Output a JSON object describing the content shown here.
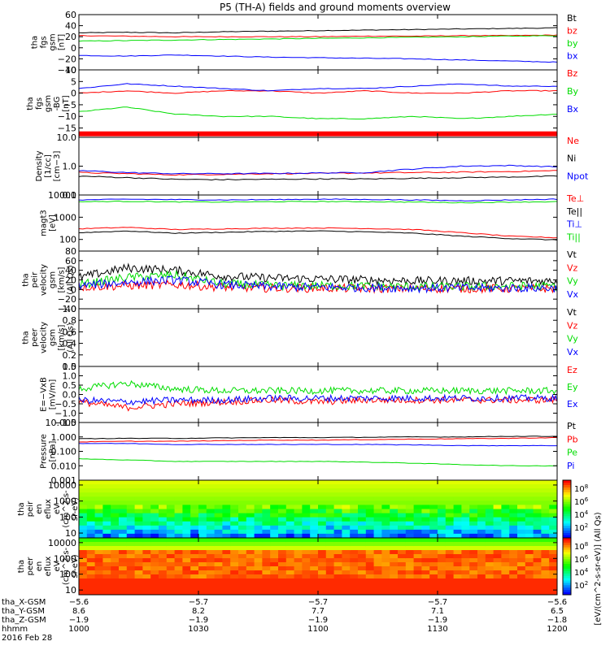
{
  "title": "P5 (TH-A) fields and ground moments overview",
  "colors": {
    "black": "#000000",
    "red": "#ff0000",
    "green": "#00dd00",
    "blue": "#0000ff",
    "axis": "#000000"
  },
  "chart_data": [
    {
      "id": "fgs-gsm-1",
      "type": "line",
      "ylabel": [
        "tha",
        "fgs",
        "gsm",
        "[nT]"
      ],
      "yscale": "linear",
      "ylim": [
        -40,
        60
      ],
      "yticks": [
        {
          "v": 60,
          "label": "60"
        },
        {
          "v": 40,
          "label": "40"
        },
        {
          "v": 20,
          "label": "20"
        },
        {
          "v": 0,
          "label": "0"
        },
        {
          "v": -20,
          "label": "−20"
        },
        {
          "v": -40,
          "label": "−40"
        }
      ],
      "series": [
        {
          "name": "Bt",
          "color": "black",
          "values": [
            27,
            28,
            27,
            29,
            30,
            31,
            32,
            33,
            34,
            35,
            36
          ]
        },
        {
          "name": "bz",
          "color": "red",
          "values": [
            22,
            21,
            20,
            20,
            20,
            20,
            21,
            21,
            22,
            22,
            23
          ]
        },
        {
          "name": "by",
          "color": "green",
          "values": [
            12,
            13,
            14,
            15,
            16,
            17,
            18,
            19,
            20,
            21,
            22
          ]
        },
        {
          "name": "bx",
          "color": "blue",
          "values": [
            -14,
            -15,
            -13,
            -15,
            -17,
            -18,
            -19,
            -20,
            -22,
            -24,
            -26
          ]
        }
      ]
    },
    {
      "id": "fgs-gsm-2",
      "type": "line",
      "ylabel": [
        "tha",
        "fgs",
        "gsm",
        "-BG",
        "[nT]"
      ],
      "yscale": "linear",
      "ylim": [
        -19,
        10
      ],
      "yticks": [
        {
          "v": 10,
          "label": "10"
        },
        {
          "v": 5,
          "label": "5"
        },
        {
          "v": 0,
          "label": "0"
        },
        {
          "v": -5,
          "label": "−5"
        },
        {
          "v": -10,
          "label": "−10"
        },
        {
          "v": -15,
          "label": "−15"
        }
      ],
      "series": [
        {
          "name": "Bz",
          "color": "red",
          "values": [
            0,
            1,
            0,
            1,
            1,
            0,
            1,
            0,
            0,
            1,
            1
          ]
        },
        {
          "name": "By",
          "color": "green",
          "values": [
            -8,
            -6,
            -9,
            -10,
            -10,
            -11,
            -11,
            -10,
            -11,
            -10,
            -9
          ]
        },
        {
          "name": "Bx",
          "color": "blue",
          "values": [
            2,
            4,
            3,
            2,
            1,
            2,
            2,
            3,
            4,
            3,
            3
          ]
        }
      ],
      "band": {
        "y": -17.5,
        "color": "red"
      }
    },
    {
      "id": "density",
      "type": "line",
      "ylabel": [
        "Density",
        "[1/cc]",
        "[cm−3]"
      ],
      "yscale": "log",
      "ylim": [
        0.1,
        10
      ],
      "yticks": [
        {
          "v": 10,
          "label": "10.0"
        },
        {
          "v": 1,
          "label": "1.0"
        },
        {
          "v": 0.1,
          "label": "0.1"
        }
      ],
      "series": [
        {
          "name": "Ne",
          "color": "red",
          "values": [
            0.6,
            0.55,
            0.5,
            0.52,
            0.55,
            0.56,
            0.58,
            0.6,
            0.62,
            0.65,
            0.7
          ]
        },
        {
          "name": "Ni",
          "color": "black",
          "values": [
            0.45,
            0.4,
            0.35,
            0.34,
            0.35,
            0.36,
            0.36,
            0.38,
            0.4,
            0.42,
            0.45
          ]
        },
        {
          "name": "Npot",
          "color": "blue",
          "values": [
            0.7,
            0.6,
            0.55,
            0.55,
            0.56,
            0.58,
            0.6,
            0.8,
            1.0,
            1.05,
            0.95
          ]
        }
      ]
    },
    {
      "id": "temperature",
      "type": "line",
      "ylabel": [
        "magt3",
        "[eV]"
      ],
      "yscale": "log",
      "ylim": [
        30,
        10000
      ],
      "yticks": [
        {
          "v": 10000,
          "label": "10000"
        },
        {
          "v": 1000,
          "label": "1000"
        },
        {
          "v": 100,
          "label": "100"
        }
      ],
      "series": [
        {
          "name": "Te⊥",
          "color": "red",
          "values": [
            300,
            350,
            280,
            300,
            320,
            330,
            310,
            280,
            200,
            140,
            120
          ]
        },
        {
          "name": "Te||",
          "color": "black",
          "values": [
            200,
            240,
            190,
            210,
            230,
            240,
            220,
            190,
            140,
            110,
            95
          ]
        },
        {
          "name": "Ti⊥",
          "color": "blue",
          "values": [
            6000,
            6500,
            6200,
            6000,
            6200,
            6500,
            6300,
            6000,
            5500,
            6000,
            6500
          ]
        },
        {
          "name": "Ti||",
          "color": "green",
          "values": [
            5000,
            5200,
            4900,
            4800,
            5000,
            5100,
            5000,
            4800,
            4500,
            4800,
            5000
          ]
        }
      ]
    },
    {
      "id": "peir-velocity",
      "type": "line",
      "ylabel": [
        "tha",
        "peir",
        "velocity",
        "gsm",
        "[km/s]",
        "(All Qs)"
      ],
      "yscale": "linear",
      "ylim": [
        -40,
        80
      ],
      "yticks": [
        {
          "v": 80,
          "label": "80"
        },
        {
          "v": 60,
          "label": "60"
        },
        {
          "v": 40,
          "label": "40"
        },
        {
          "v": 20,
          "label": "20"
        },
        {
          "v": 0,
          "label": "0"
        },
        {
          "v": -20,
          "label": "−20"
        },
        {
          "v": -40,
          "label": "−40"
        }
      ],
      "series": [
        {
          "name": "Vt",
          "color": "black",
          "values": [
            25,
            45,
            40,
            28,
            24,
            22,
            20,
            18,
            18,
            18,
            18
          ]
        },
        {
          "name": "Vz",
          "color": "red",
          "values": [
            5,
            8,
            10,
            5,
            3,
            3,
            2,
            2,
            2,
            2,
            2
          ]
        },
        {
          "name": "Vy",
          "color": "green",
          "values": [
            10,
            25,
            30,
            12,
            8,
            8,
            7,
            6,
            6,
            7,
            7
          ]
        },
        {
          "name": "Vx",
          "color": "blue",
          "values": [
            8,
            15,
            20,
            10,
            6,
            5,
            4,
            3,
            3,
            3,
            3
          ]
        }
      ]
    },
    {
      "id": "peer-velocity",
      "type": "line",
      "ylabel": [
        "tha",
        "peer",
        "velocity",
        "gsm",
        "[km/s]",
        "(All Qs)"
      ],
      "yscale": "linear",
      "ylim": [
        0,
        1
      ],
      "yticks": [
        {
          "v": 1.0,
          "label": "1.0"
        },
        {
          "v": 0.8,
          "label": "0.8"
        },
        {
          "v": 0.6,
          "label": "0.6"
        },
        {
          "v": 0.4,
          "label": "0.4"
        },
        {
          "v": 0.2,
          "label": "0.2"
        },
        {
          "v": 0.0,
          "label": "0.0"
        }
      ],
      "series": [
        {
          "name": "Vt",
          "color": "black",
          "values": []
        },
        {
          "name": "Vz",
          "color": "red",
          "values": []
        },
        {
          "name": "Vy",
          "color": "green",
          "values": []
        },
        {
          "name": "Vx",
          "color": "blue",
          "values": []
        }
      ]
    },
    {
      "id": "efield",
      "type": "line",
      "ylabel": [
        "E=−VxB",
        "[mV/m]"
      ],
      "yscale": "linear",
      "ylim": [
        -1.5,
        1.5
      ],
      "yticks": [
        {
          "v": 1.5,
          "label": "1.5"
        },
        {
          "v": 1.0,
          "label": "1.0"
        },
        {
          "v": 0.5,
          "label": "0.5"
        },
        {
          "v": 0.0,
          "label": "0.0"
        },
        {
          "v": -0.5,
          "label": "−0.5"
        },
        {
          "v": -1.0,
          "label": "−1.0"
        },
        {
          "v": -1.5,
          "label": "−1.5"
        }
      ],
      "series": [
        {
          "name": "Ez",
          "color": "red",
          "values": [
            -0.4,
            -0.7,
            -0.5,
            -0.4,
            -0.3,
            -0.4,
            -0.3,
            -0.3,
            -0.3,
            -0.3,
            -0.3
          ]
        },
        {
          "name": "Ey",
          "color": "green",
          "values": [
            0.3,
            0.6,
            0.3,
            0.2,
            0.2,
            0.2,
            0.2,
            0.2,
            0.2,
            0.2,
            0.2
          ]
        },
        {
          "name": "Ex",
          "color": "blue",
          "values": [
            -0.3,
            -0.4,
            -0.3,
            -0.3,
            -0.2,
            -0.2,
            -0.2,
            -0.2,
            -0.2,
            -0.2,
            -0.2
          ]
        }
      ]
    },
    {
      "id": "pressure",
      "type": "line",
      "ylabel": [
        "Pressure",
        "[nPa]"
      ],
      "yscale": "log",
      "ylim": [
        0.001,
        10
      ],
      "yticks": [
        {
          "v": 10,
          "label": "10.000"
        },
        {
          "v": 1,
          "label": "1.000"
        },
        {
          "v": 0.1,
          "label": "0.100"
        },
        {
          "v": 0.01,
          "label": "0.010"
        },
        {
          "v": 0.001,
          "label": "0.001"
        }
      ],
      "series": [
        {
          "name": "Pt",
          "color": "black",
          "values": [
            0.75,
            0.8,
            0.8,
            0.85,
            0.9,
            0.9,
            0.95,
            1.0,
            1.0,
            1.1,
            1.1
          ]
        },
        {
          "name": "Pb",
          "color": "red",
          "values": [
            0.45,
            0.5,
            0.5,
            0.55,
            0.6,
            0.6,
            0.65,
            0.7,
            0.75,
            0.8,
            0.9
          ]
        },
        {
          "name": "Pe",
          "color": "green",
          "values": [
            0.03,
            0.025,
            0.02,
            0.02,
            0.02,
            0.02,
            0.018,
            0.015,
            0.012,
            0.01,
            0.01
          ]
        },
        {
          "name": "Pi",
          "color": "blue",
          "values": [
            0.35,
            0.35,
            0.3,
            0.3,
            0.3,
            0.3,
            0.3,
            0.28,
            0.25,
            0.25,
            0.25
          ]
        }
      ]
    },
    {
      "id": "peir-spectrogram",
      "type": "heatmap",
      "ylabel": [
        "tha",
        "peir",
        "en",
        "eflux",
        "eV",
        "(cm^2-s-",
        "sr-eV)"
      ],
      "yscale": "log",
      "ylim": [
        5,
        20000
      ],
      "yticks": [
        {
          "v": 10000,
          "label": "10000"
        },
        {
          "v": 1000,
          "label": "1000"
        },
        {
          "v": 100,
          "label": "100"
        },
        {
          "v": 10,
          "label": "10"
        }
      ],
      "colorbar": {
        "label": "[eV/(cm^2-s-sr-eV)] (All Qs)",
        "ticks": [
          "10^8",
          "10^6",
          "10^4",
          "10^2"
        ],
        "range_log": [
          1,
          9
        ]
      }
    },
    {
      "id": "peer-spectrogram",
      "type": "heatmap",
      "ylabel": [
        "tha",
        "peer",
        "en",
        "eflux",
        "eV",
        "(cm^2-s-",
        "sr-eV)"
      ],
      "yscale": "log",
      "ylim": [
        5,
        20000
      ],
      "yticks": [
        {
          "v": 10000,
          "label": "10000"
        },
        {
          "v": 1000,
          "label": "1000"
        },
        {
          "v": 100,
          "label": "100"
        },
        {
          "v": 10,
          "label": "10"
        }
      ],
      "colorbar": {
        "label": "[eV/(cm^2-s-sr-eV)] (All Qs)",
        "ticks": [
          "10^8",
          "10^6",
          "10^4",
          "10^2"
        ],
        "range_log": [
          1,
          9
        ]
      }
    }
  ],
  "xaxis": {
    "rows": [
      {
        "label": "tha_X-GSM",
        "values": [
          "−5.6",
          "−5.7",
          "−5.7",
          "−5.7",
          "−5.6"
        ]
      },
      {
        "label": "tha_Y-GSM",
        "values": [
          "8.6",
          "8.2",
          "7.7",
          "7.1",
          "6.5"
        ]
      },
      {
        "label": "tha_Z-GSM",
        "values": [
          "−1.9",
          "−1.9",
          "−1.9",
          "−1.9",
          "−1.8"
        ]
      },
      {
        "label": "hhmm",
        "values": [
          "1000",
          "1030",
          "1100",
          "1130",
          "1200"
        ]
      }
    ],
    "date": "2016 Feb 28"
  }
}
